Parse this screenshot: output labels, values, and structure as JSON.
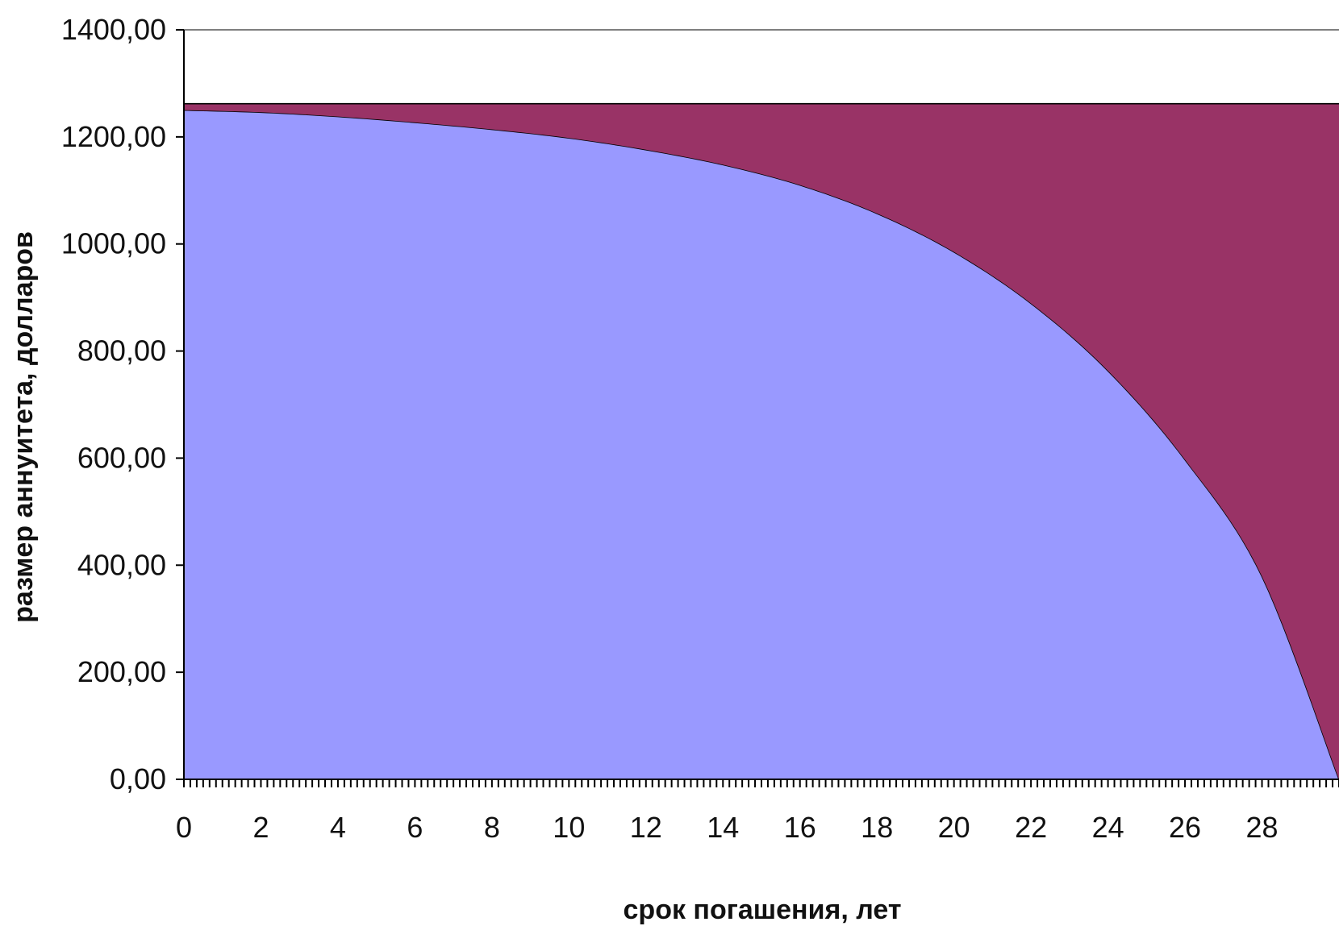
{
  "chart_data": {
    "type": "area",
    "title": "",
    "xlabel": "срок погашения, лет",
    "ylabel": "размер аннуитета, долларов",
    "xlim": [
      0,
      30
    ],
    "ylim": [
      0,
      1400
    ],
    "x_ticks": [
      "0",
      "2",
      "4",
      "6",
      "8",
      "10",
      "12",
      "14",
      "16",
      "18",
      "20",
      "22",
      "24",
      "26",
      "28"
    ],
    "y_ticks": [
      "0,00",
      "200,00",
      "400,00",
      "600,00",
      "800,00",
      "1000,00",
      "1200,00",
      "1400,00"
    ],
    "grid": false,
    "legend": "none",
    "stacked": true,
    "x": [
      0,
      2,
      4,
      6,
      8,
      10,
      12,
      14,
      16,
      18,
      20,
      22,
      24,
      26,
      28,
      30
    ],
    "series": [
      {
        "color": "#9999ff",
        "values": [
          1250,
          1246,
          1238,
          1227,
          1214,
          1198,
          1176,
          1148,
          1110,
          1057,
          985,
          889,
          763,
          597,
          379,
          0
        ]
      },
      {
        "color": "#993366",
        "values": [
          12,
          16,
          24,
          35,
          48,
          64,
          86,
          114,
          152,
          205,
          277,
          373,
          499,
          665,
          883,
          1262
        ]
      }
    ]
  }
}
